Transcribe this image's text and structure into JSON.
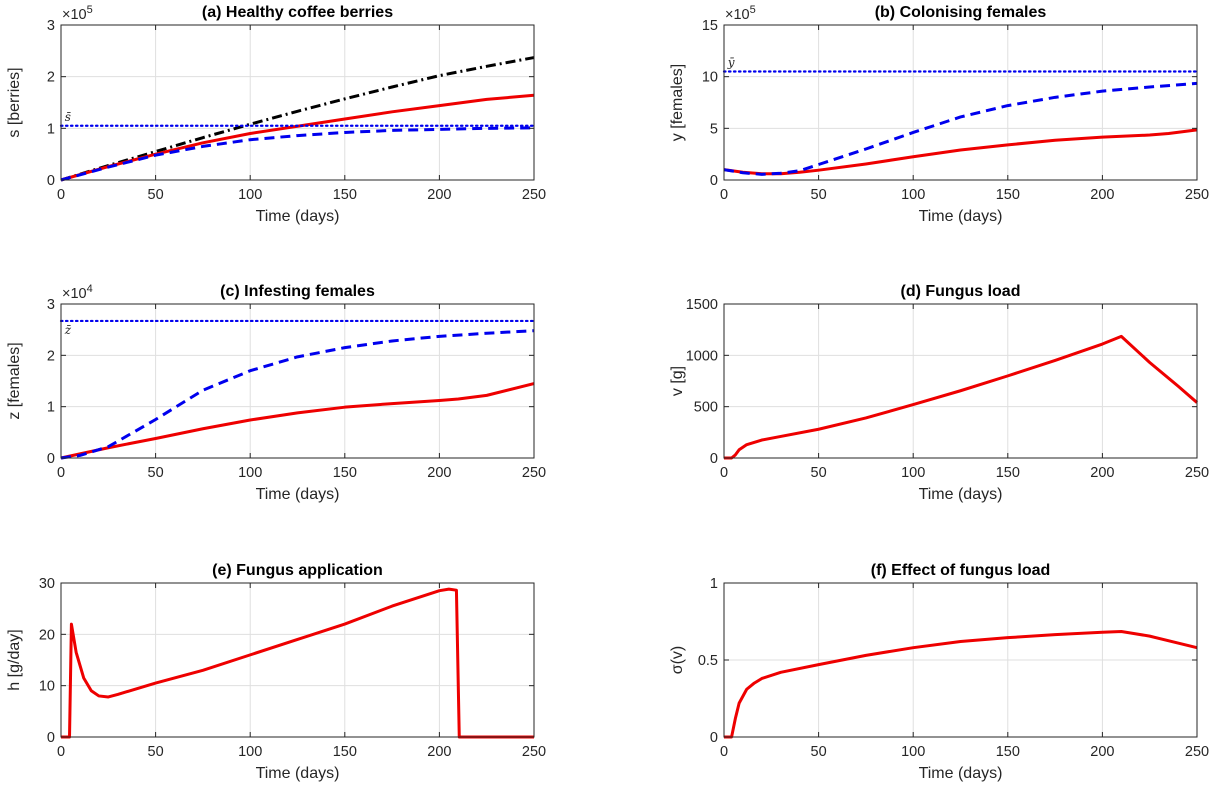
{
  "chart_data": [
    {
      "id": "a",
      "type": "line",
      "title": "(a) Healthy coffee berries",
      "xlabel": "Time (days)",
      "ylabel": "s [berries]",
      "multiplier_base": "×10",
      "multiplier_exp": "5",
      "xlim": [
        0,
        250
      ],
      "ylim": [
        0,
        3
      ],
      "xticks": [
        0,
        50,
        100,
        150,
        200,
        250
      ],
      "yticks": [
        0,
        1,
        2,
        3
      ],
      "grid": true,
      "series": [
        {
          "style": "dashdot",
          "color": "#000000",
          "x": [
            0,
            25,
            50,
            75,
            100,
            125,
            150,
            175,
            200,
            225,
            250
          ],
          "y": [
            0,
            0.28,
            0.55,
            0.82,
            1.08,
            1.33,
            1.57,
            1.8,
            2.02,
            2.2,
            2.37
          ]
        },
        {
          "style": "solid",
          "color": "#ee0000",
          "x": [
            0,
            25,
            50,
            75,
            100,
            125,
            150,
            175,
            200,
            225,
            250
          ],
          "y": [
            0,
            0.26,
            0.5,
            0.72,
            0.9,
            1.04,
            1.18,
            1.32,
            1.44,
            1.56,
            1.64
          ]
        },
        {
          "style": "dashed",
          "color": "#0000ee",
          "x": [
            0,
            25,
            50,
            75,
            100,
            125,
            150,
            175,
            200,
            225,
            250
          ],
          "y": [
            0,
            0.25,
            0.48,
            0.65,
            0.78,
            0.86,
            0.92,
            0.96,
            0.98,
            1.0,
            1.01
          ]
        },
        {
          "style": "dotted",
          "color": "#0000ee",
          "x": [
            0,
            250
          ],
          "y": [
            1.05,
            1.05
          ]
        }
      ],
      "annotations": [
        {
          "text": "s̄",
          "x": 2,
          "y": 1.05,
          "pos": "above"
        }
      ]
    },
    {
      "id": "b",
      "type": "line",
      "title": "(b) Colonising females",
      "xlabel": "Time (days)",
      "ylabel": "y [females]",
      "multiplier_base": "×10",
      "multiplier_exp": "5",
      "xlim": [
        0,
        250
      ],
      "ylim": [
        0,
        15
      ],
      "xticks": [
        0,
        50,
        100,
        150,
        200,
        250
      ],
      "yticks": [
        0,
        5,
        10,
        15
      ],
      "grid": true,
      "series": [
        {
          "style": "solid",
          "color": "#ee0000",
          "x": [
            0,
            10,
            20,
            30,
            40,
            50,
            75,
            100,
            125,
            150,
            175,
            200,
            225,
            235,
            250
          ],
          "y": [
            1.0,
            0.75,
            0.6,
            0.6,
            0.75,
            0.95,
            1.55,
            2.25,
            2.9,
            3.4,
            3.85,
            4.15,
            4.35,
            4.5,
            4.85
          ]
        },
        {
          "style": "dashed",
          "color": "#0000ee",
          "x": [
            0,
            10,
            20,
            30,
            40,
            50,
            75,
            100,
            125,
            150,
            175,
            200,
            225,
            250
          ],
          "y": [
            1.0,
            0.7,
            0.55,
            0.65,
            0.9,
            1.5,
            3.0,
            4.6,
            6.1,
            7.2,
            8.0,
            8.6,
            9.0,
            9.35
          ]
        },
        {
          "style": "dotted",
          "color": "#0000ee",
          "x": [
            0,
            250
          ],
          "y": [
            10.5,
            10.5
          ]
        }
      ],
      "annotations": [
        {
          "text": "ȳ",
          "x": 2,
          "y": 10.5,
          "pos": "above"
        }
      ]
    },
    {
      "id": "c",
      "type": "line",
      "title": "(c) Infesting females",
      "xlabel": "Time (days)",
      "ylabel": "z [females]",
      "multiplier_base": "×10",
      "multiplier_exp": "4",
      "xlim": [
        0,
        250
      ],
      "ylim": [
        0,
        3
      ],
      "xticks": [
        0,
        50,
        100,
        150,
        200,
        250
      ],
      "yticks": [
        0,
        1,
        2,
        3
      ],
      "grid": true,
      "series": [
        {
          "style": "solid",
          "color": "#ee0000",
          "x": [
            0,
            10,
            25,
            50,
            75,
            100,
            125,
            150,
            175,
            200,
            210,
            225,
            250
          ],
          "y": [
            0,
            0.08,
            0.2,
            0.38,
            0.57,
            0.74,
            0.88,
            0.99,
            1.06,
            1.12,
            1.15,
            1.22,
            1.45
          ]
        },
        {
          "style": "dashed",
          "color": "#0000ee",
          "x": [
            0,
            10,
            25,
            50,
            75,
            100,
            125,
            150,
            175,
            200,
            225,
            250
          ],
          "y": [
            0,
            0.05,
            0.22,
            0.75,
            1.32,
            1.7,
            1.97,
            2.15,
            2.28,
            2.37,
            2.43,
            2.48
          ]
        },
        {
          "style": "dotted",
          "color": "#0000ee",
          "x": [
            0,
            250
          ],
          "y": [
            2.67,
            2.67
          ]
        }
      ],
      "annotations": [
        {
          "text": "z̄",
          "x": 2,
          "y": 2.67,
          "pos": "below"
        }
      ]
    },
    {
      "id": "d",
      "type": "line",
      "title": "(d) Fungus load",
      "xlabel": "Time (days)",
      "ylabel": "v [g]",
      "multiplier_base": "",
      "multiplier_exp": "",
      "xlim": [
        0,
        250
      ],
      "ylim": [
        0,
        1500
      ],
      "xticks": [
        0,
        50,
        100,
        150,
        200,
        250
      ],
      "yticks": [
        0,
        500,
        1000,
        1500
      ],
      "grid": true,
      "series": [
        {
          "style": "solid",
          "color": "#ee0000",
          "x": [
            0,
            4,
            6,
            8,
            12,
            20,
            30,
            50,
            75,
            100,
            125,
            150,
            175,
            200,
            210,
            225,
            240,
            250
          ],
          "y": [
            0,
            0,
            30,
            80,
            130,
            175,
            210,
            280,
            390,
            520,
            655,
            800,
            950,
            1110,
            1185,
            930,
            700,
            540
          ]
        }
      ],
      "annotations": []
    },
    {
      "id": "e",
      "type": "line",
      "title": "(e) Fungus application",
      "xlabel": "Time (days)",
      "ylabel": "h [g/day]",
      "multiplier_base": "",
      "multiplier_exp": "",
      "xlim": [
        0,
        250
      ],
      "ylim": [
        0,
        30
      ],
      "xticks": [
        0,
        50,
        100,
        150,
        200,
        250
      ],
      "yticks": [
        0,
        10,
        20,
        30
      ],
      "grid": true,
      "series": [
        {
          "style": "solid",
          "color": "#ee0000",
          "x": [
            0,
            4.5,
            5.5,
            8,
            12,
            16,
            20,
            25,
            30,
            50,
            75,
            100,
            125,
            150,
            175,
            200,
            205,
            209,
            210.5,
            250
          ],
          "y": [
            0,
            0,
            22,
            16.5,
            11.5,
            9,
            8,
            7.8,
            8.3,
            10.5,
            13,
            16,
            19,
            22,
            25.5,
            28.5,
            28.8,
            28.6,
            0,
            0
          ]
        }
      ],
      "annotations": []
    },
    {
      "id": "f",
      "type": "line",
      "title": "(f) Effect of fungus load",
      "xlabel": "Time (days)",
      "ylabel": "σ(v)",
      "multiplier_base": "",
      "multiplier_exp": "",
      "xlim": [
        0,
        250
      ],
      "ylim": [
        0,
        1
      ],
      "xticks": [
        0,
        50,
        100,
        150,
        200,
        250
      ],
      "yticks": [
        0,
        0.5,
        1
      ],
      "grid": true,
      "series": [
        {
          "style": "solid",
          "color": "#ee0000",
          "x": [
            0,
            4,
            6,
            8,
            12,
            16,
            20,
            30,
            50,
            75,
            100,
            125,
            150,
            175,
            200,
            210,
            225,
            240,
            250
          ],
          "y": [
            0,
            0,
            0.12,
            0.22,
            0.31,
            0.35,
            0.38,
            0.42,
            0.47,
            0.53,
            0.58,
            0.62,
            0.645,
            0.665,
            0.68,
            0.685,
            0.655,
            0.61,
            0.58
          ]
        }
      ],
      "annotations": []
    }
  ]
}
